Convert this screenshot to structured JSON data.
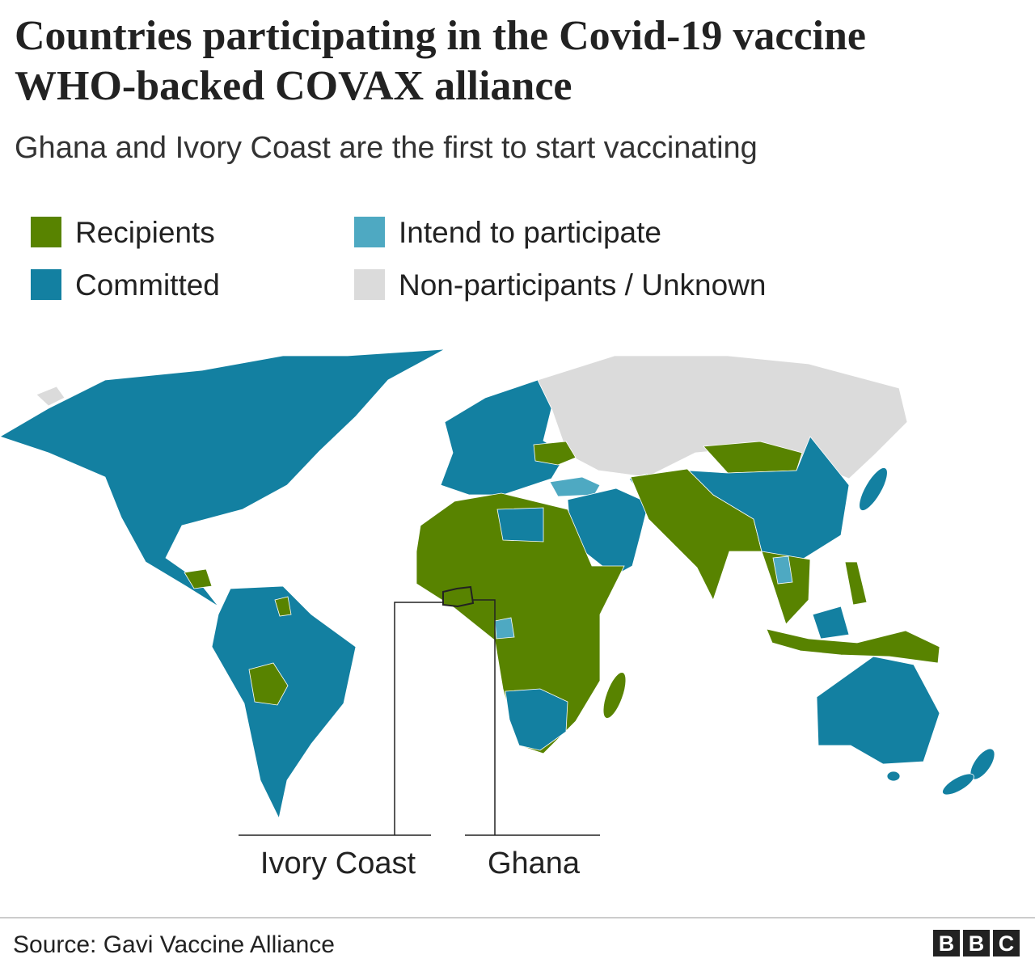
{
  "header": {
    "title": "Countries participating in the Covid-19 vaccine WHO-backed COVAX alliance",
    "subtitle": "Ghana and Ivory Coast are the first to start vaccinating"
  },
  "legend": [
    {
      "label": "Recipients",
      "color": "#588300"
    },
    {
      "label": "Committed",
      "color": "#1380a1"
    },
    {
      "label": "Intend to participate",
      "color": "#4ea9c2"
    },
    {
      "label": "Non-participants / Unknown",
      "color": "#dbdbdb"
    }
  ],
  "annotations": [
    {
      "label": "Ivory Coast"
    },
    {
      "label": "Ghana"
    }
  ],
  "footer": {
    "source": "Source: Gavi Vaccine Alliance",
    "logo": "BBC"
  }
}
